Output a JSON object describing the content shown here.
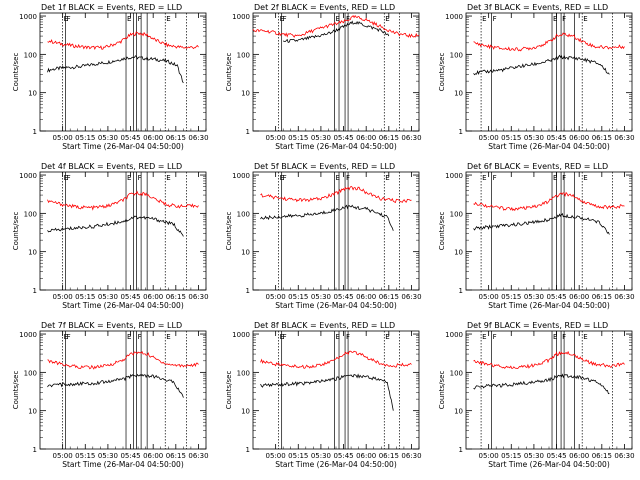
{
  "figure": {
    "xlabel": "Start Time (26-Mar-04 04:50:00)",
    "ylabel": "Counts/sec",
    "x_ticks": [
      "05:00",
      "05:15",
      "05:30",
      "05:45",
      "06:00",
      "06:15",
      "06:30"
    ],
    "y_ticks": [
      "1",
      "10",
      "100",
      "1000"
    ],
    "colors": {
      "events": "#000000",
      "lld": "#ff0000",
      "axes": "#000000"
    },
    "marker_letters": [
      "E",
      "F",
      "E",
      "F",
      "E"
    ]
  },
  "chart_data": [
    {
      "type": "line",
      "title": "Det 1f BLACK = Events, RED = LLD",
      "x_unit": "minutes after 04:50:00",
      "xlim": [
        -5,
        105
      ],
      "ylim": [
        1,
        1200
      ],
      "log_y": true,
      "series": [
        {
          "name": "Events",
          "x": [
            0,
            5,
            12,
            22,
            30,
            40,
            52,
            57,
            62,
            70,
            78,
            82,
            86,
            90
          ],
          "y": [
            38,
            42,
            45,
            48,
            55,
            62,
            80,
            85,
            80,
            75,
            68,
            60,
            50,
            18
          ]
        },
        {
          "name": "LLD",
          "x": [
            0,
            8,
            18,
            28,
            38,
            48,
            55,
            60,
            66,
            72,
            80,
            90,
            100
          ],
          "y": [
            230,
            190,
            165,
            150,
            150,
            210,
            320,
            360,
            320,
            230,
            170,
            150,
            155
          ]
        }
      ]
    },
    {
      "type": "line",
      "title": "Det 2f BLACK = Events, RED = LLD",
      "x_unit": "minutes after 04:50:00",
      "xlim": [
        -5,
        105
      ],
      "ylim": [
        1,
        1200
      ],
      "log_y": true,
      "series": [
        {
          "name": "Events",
          "x": [
            15,
            25,
            35,
            45,
            55,
            62,
            70,
            80,
            85
          ],
          "y": [
            220,
            230,
            280,
            350,
            520,
            700,
            560,
            420,
            300
          ]
        },
        {
          "name": "LLD",
          "x": [
            -5,
            5,
            15,
            25,
            35,
            45,
            55,
            62,
            70,
            80,
            90,
            100,
            105
          ],
          "y": [
            420,
            400,
            330,
            300,
            420,
            560,
            700,
            950,
            800,
            520,
            350,
            300,
            320
          ]
        }
      ]
    },
    {
      "type": "line",
      "title": "Det 3f BLACK = Events, RED = LLD",
      "x_unit": "minutes after 04:50:00",
      "xlim": [
        -5,
        105
      ],
      "ylim": [
        1,
        1200
      ],
      "log_y": true,
      "series": [
        {
          "name": "Events",
          "x": [
            0,
            10,
            20,
            30,
            40,
            52,
            57,
            62,
            70,
            78,
            84,
            90
          ],
          "y": [
            32,
            36,
            40,
            48,
            55,
            70,
            85,
            82,
            78,
            65,
            55,
            30
          ]
        },
        {
          "name": "LLD",
          "x": [
            0,
            10,
            20,
            30,
            40,
            50,
            55,
            60,
            66,
            72,
            80,
            90,
            100
          ],
          "y": [
            200,
            160,
            140,
            135,
            150,
            210,
            300,
            330,
            300,
            220,
            160,
            150,
            160
          ]
        }
      ]
    },
    {
      "type": "line",
      "title": "Det 4f BLACK = Events, RED = LLD",
      "x_unit": "minutes after 04:50:00",
      "xlim": [
        -5,
        105
      ],
      "ylim": [
        1,
        1200
      ],
      "log_y": true,
      "series": [
        {
          "name": "Events",
          "x": [
            0,
            10,
            20,
            30,
            40,
            52,
            57,
            62,
            70,
            78,
            84,
            90
          ],
          "y": [
            35,
            38,
            42,
            45,
            52,
            65,
            80,
            78,
            72,
            60,
            50,
            25
          ]
        },
        {
          "name": "LLD",
          "x": [
            0,
            10,
            20,
            30,
            40,
            50,
            55,
            60,
            66,
            72,
            80,
            90,
            100
          ],
          "y": [
            210,
            170,
            145,
            140,
            155,
            220,
            310,
            340,
            310,
            225,
            165,
            150,
            160
          ]
        }
      ]
    },
    {
      "type": "line",
      "title": "Det 5f BLACK = Events, RED = LLD",
      "x_unit": "minutes after 04:50:00",
      "xlim": [
        -5,
        105
      ],
      "ylim": [
        1,
        1200
      ],
      "log_y": true,
      "series": [
        {
          "name": "Events",
          "x": [
            0,
            10,
            20,
            30,
            40,
            52,
            57,
            62,
            70,
            78,
            84,
            88
          ],
          "y": [
            75,
            80,
            85,
            90,
            100,
            130,
            150,
            145,
            130,
            100,
            80,
            35
          ]
        },
        {
          "name": "LLD",
          "x": [
            0,
            10,
            20,
            30,
            40,
            50,
            55,
            60,
            66,
            72,
            80,
            90,
            100
          ],
          "y": [
            300,
            260,
            230,
            220,
            240,
            330,
            440,
            470,
            430,
            320,
            240,
            210,
            220
          ]
        }
      ]
    },
    {
      "type": "line",
      "title": "Det 6f BLACK = Events, RED = LLD",
      "x_unit": "minutes after 04:50:00",
      "xlim": [
        -5,
        105
      ],
      "ylim": [
        1,
        1200
      ],
      "log_y": true,
      "series": [
        {
          "name": "Events",
          "x": [
            0,
            10,
            20,
            30,
            40,
            52,
            57,
            62,
            70,
            78,
            84,
            90
          ],
          "y": [
            40,
            44,
            48,
            52,
            58,
            72,
            90,
            86,
            80,
            66,
            56,
            28
          ]
        },
        {
          "name": "LLD",
          "x": [
            0,
            10,
            20,
            30,
            40,
            50,
            55,
            60,
            66,
            72,
            80,
            90,
            100
          ],
          "y": [
            190,
            155,
            135,
            130,
            145,
            205,
            290,
            320,
            290,
            210,
            155,
            145,
            155
          ]
        }
      ]
    },
    {
      "type": "line",
      "title": "Det 7f BLACK = Events, RED = LLD",
      "x_unit": "minutes after 04:50:00",
      "xlim": [
        -5,
        105
      ],
      "ylim": [
        1,
        1200
      ],
      "log_y": true,
      "series": [
        {
          "name": "Events",
          "x": [
            0,
            10,
            20,
            30,
            40,
            52,
            57,
            62,
            70,
            78,
            84,
            90
          ],
          "y": [
            45,
            48,
            50,
            52,
            58,
            70,
            85,
            82,
            78,
            65,
            55,
            22
          ]
        },
        {
          "name": "LLD",
          "x": [
            0,
            10,
            20,
            30,
            40,
            50,
            55,
            60,
            66,
            72,
            80,
            90,
            100
          ],
          "y": [
            200,
            160,
            140,
            135,
            150,
            210,
            300,
            330,
            300,
            220,
            160,
            150,
            160
          ]
        }
      ]
    },
    {
      "type": "line",
      "title": "Det 8f BLACK = Events, RED = LLD",
      "x_unit": "minutes after 04:50:00",
      "xlim": [
        -5,
        105
      ],
      "ylim": [
        1,
        1200
      ],
      "log_y": true,
      "series": [
        {
          "name": "Events",
          "x": [
            0,
            10,
            20,
            30,
            40,
            52,
            57,
            62,
            70,
            78,
            84,
            88
          ],
          "y": [
            45,
            48,
            50,
            52,
            58,
            70,
            85,
            82,
            78,
            65,
            55,
            10
          ]
        },
        {
          "name": "LLD",
          "x": [
            0,
            10,
            20,
            30,
            40,
            50,
            55,
            60,
            66,
            72,
            80,
            90,
            100
          ],
          "y": [
            200,
            165,
            145,
            140,
            155,
            215,
            305,
            335,
            305,
            225,
            165,
            150,
            160
          ]
        }
      ]
    },
    {
      "type": "line",
      "title": "Det 9f BLACK = Events, RED = LLD",
      "x_unit": "minutes after 04:50:00",
      "xlim": [
        -5,
        105
      ],
      "ylim": [
        1,
        1200
      ],
      "log_y": true,
      "series": [
        {
          "name": "Events",
          "x": [
            0,
            10,
            20,
            30,
            40,
            52,
            57,
            62,
            70,
            78,
            84,
            90
          ],
          "y": [
            40,
            44,
            46,
            50,
            55,
            68,
            82,
            80,
            75,
            62,
            52,
            28
          ]
        },
        {
          "name": "LLD",
          "x": [
            0,
            10,
            20,
            30,
            40,
            50,
            55,
            60,
            66,
            72,
            80,
            90,
            100
          ],
          "y": [
            200,
            160,
            140,
            135,
            150,
            210,
            300,
            330,
            300,
            220,
            160,
            150,
            160
          ]
        }
      ]
    }
  ]
}
